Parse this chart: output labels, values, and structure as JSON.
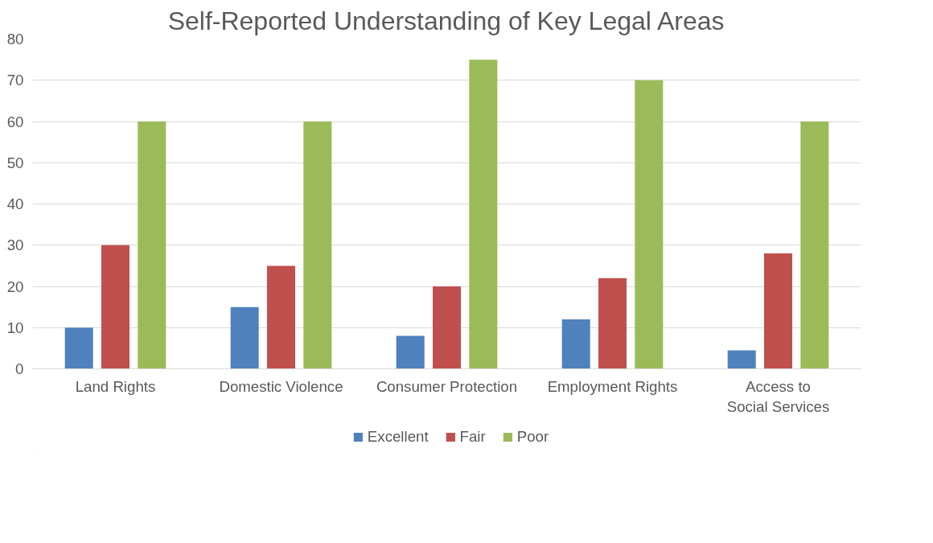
{
  "chart_data": {
    "type": "bar",
    "title": "Self-Reported Understanding of Key Legal Areas",
    "categories": [
      "Land Rights",
      "Domestic Violence",
      "Consumer Protection",
      "Employment Rights",
      "Access to Social Services"
    ],
    "series": [
      {
        "name": "Excellent",
        "color": "#4f81bd",
        "values": [
          10,
          15,
          8,
          12,
          4.5
        ]
      },
      {
        "name": "Fair",
        "color": "#c0504d",
        "values": [
          30,
          25,
          20,
          22,
          28
        ]
      },
      {
        "name": "Poor",
        "color": "#9bbb59",
        "values": [
          60,
          60,
          75,
          70,
          60
        ]
      }
    ],
    "ylim": [
      0,
      80
    ],
    "yticks": [
      0,
      10,
      20,
      30,
      40,
      50,
      60,
      70,
      80
    ],
    "grid": "y",
    "legend": "bottom"
  }
}
